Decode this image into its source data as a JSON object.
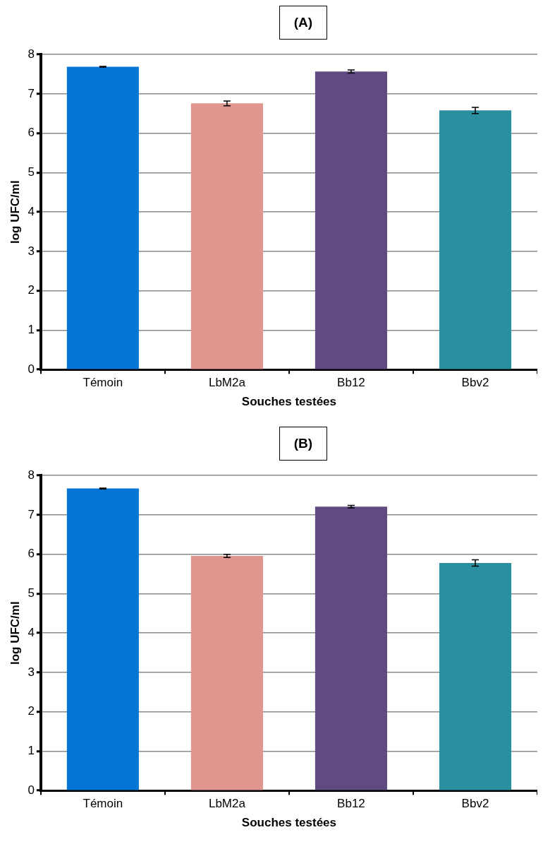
{
  "chart_data": [
    {
      "type": "bar",
      "title": "(A)",
      "xlabel": "Souches testées",
      "ylabel": "log UFC/ml",
      "categories": [
        "Témoin",
        "LbM2a",
        "Bb12",
        "Bbv2"
      ],
      "values": [
        7.69,
        6.76,
        7.57,
        6.58
      ],
      "errors": [
        0.01,
        0.06,
        0.04,
        0.08
      ],
      "colors": [
        "#0575d6",
        "#e0958f",
        "#614a82",
        "#2a8f9f"
      ],
      "ylim": [
        0,
        8
      ],
      "yticks": [
        0,
        1,
        2,
        3,
        4,
        5,
        6,
        7,
        8
      ],
      "grid": "y",
      "legend": false
    },
    {
      "type": "bar",
      "title": "(B)",
      "xlabel": "Souches testées",
      "ylabel": "log UFC/ml",
      "categories": [
        "Témoin",
        "LbM2a",
        "Bb12",
        "Bbv2"
      ],
      "values": [
        7.67,
        5.96,
        7.21,
        5.78
      ],
      "errors": [
        0.01,
        0.04,
        0.03,
        0.08
      ],
      "colors": [
        "#0575d6",
        "#e0958f",
        "#614a82",
        "#2a8f9f"
      ],
      "ylim": [
        0,
        8
      ],
      "yticks": [
        0,
        1,
        2,
        3,
        4,
        5,
        6,
        7,
        8
      ],
      "grid": "y",
      "legend": false
    }
  ]
}
